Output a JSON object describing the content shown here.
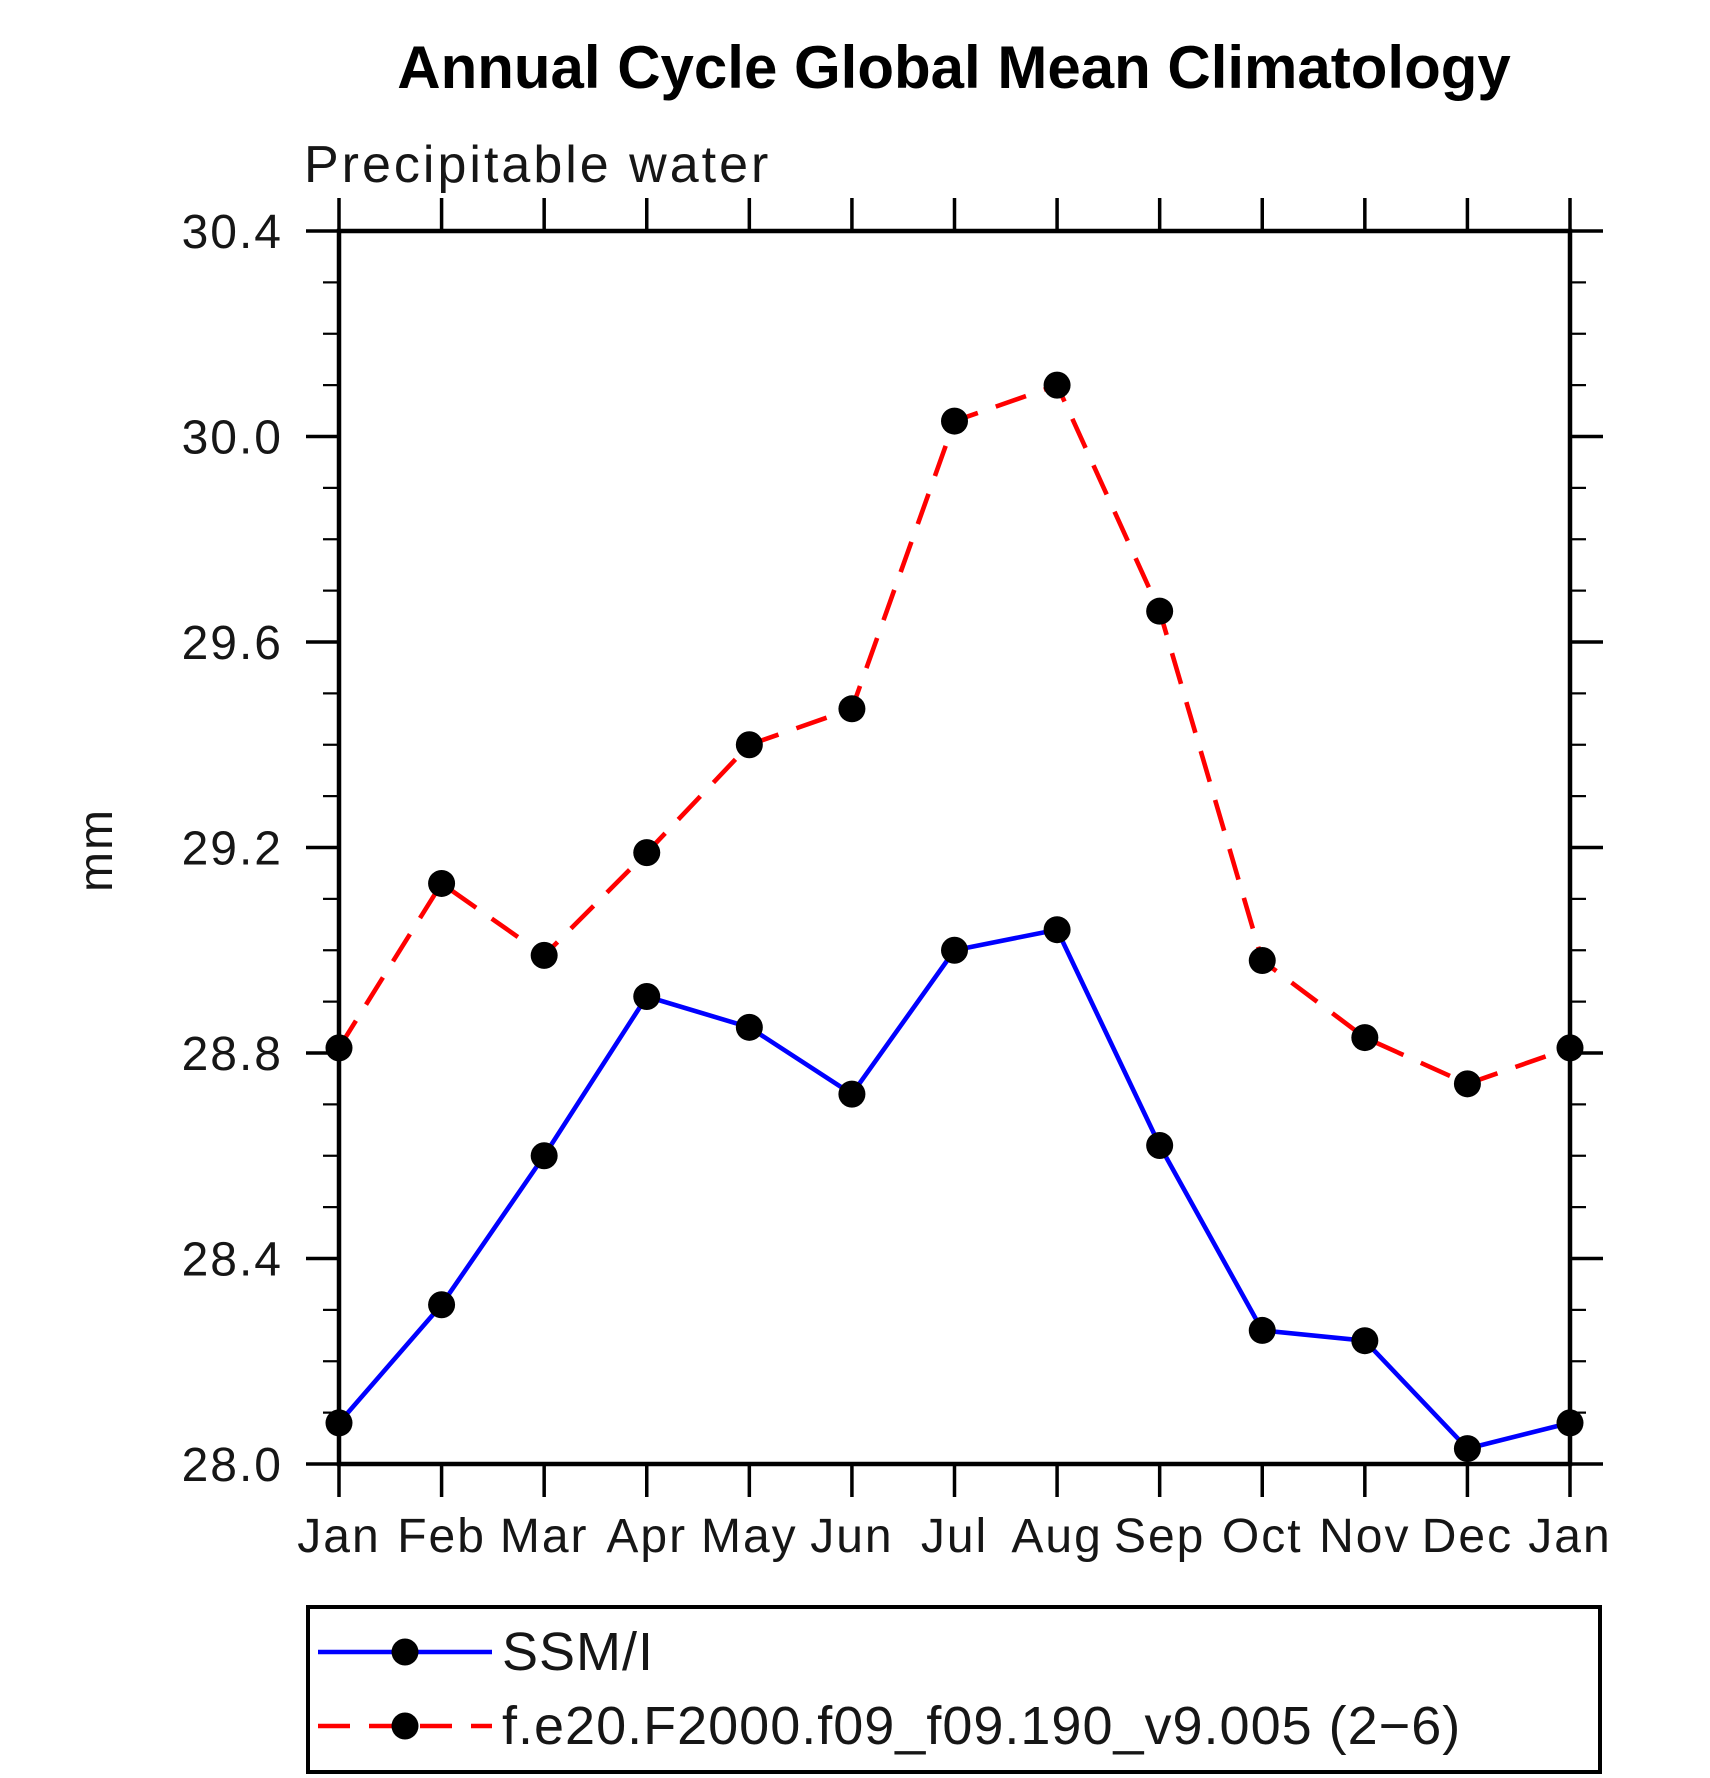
{
  "chart_data": {
    "type": "line",
    "title": "Annual Cycle Global Mean Climatology",
    "subtitle": "Precipitable water",
    "ylabel": "mm",
    "categories": [
      "Jan",
      "Feb",
      "Mar",
      "Apr",
      "May",
      "Jun",
      "Jul",
      "Aug",
      "Sep",
      "Oct",
      "Nov",
      "Dec",
      "Jan"
    ],
    "ylim": [
      28.0,
      30.4
    ],
    "y_major_step": 0.4,
    "y_minor_step": 0.1,
    "y_tick_labels": [
      "28.0",
      "28.4",
      "28.8",
      "29.2",
      "29.6",
      "30.0",
      "30.4"
    ],
    "grid": false,
    "legend_position": "bottom-left",
    "axis_color": "#000000",
    "marker_color": "#000000",
    "background_color": "#ffffff",
    "series": [
      {
        "name": "SSM/I",
        "color": "#0000ff",
        "line_style": "solid",
        "values": [
          28.08,
          28.31,
          28.6,
          28.91,
          28.85,
          28.72,
          29.0,
          29.04,
          28.62,
          28.26,
          28.24,
          28.03,
          28.08
        ]
      },
      {
        "name": "f.e20.F2000.f09_f09.190_v9.005 (2−6)",
        "color": "#ff0000",
        "line_style": "dashed",
        "values": [
          28.81,
          29.13,
          28.99,
          29.19,
          29.4,
          29.47,
          30.03,
          30.1,
          29.66,
          28.98,
          28.83,
          28.74,
          28.81
        ]
      }
    ]
  }
}
